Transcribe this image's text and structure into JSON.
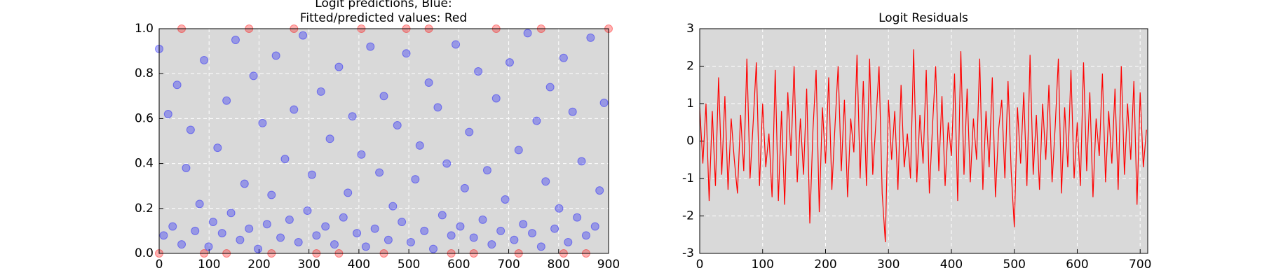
{
  "chart_data": [
    {
      "type": "scatter",
      "title": [
        "Logit predictions, Blue:",
        "Fitted/predicted values: Red"
      ],
      "xlim": [
        0,
        900
      ],
      "ylim": [
        0,
        1
      ],
      "xticks": [
        0,
        100,
        200,
        300,
        400,
        500,
        600,
        700,
        800,
        900
      ],
      "yticks": [
        {
          "value": 0,
          "label": "0.0"
        },
        0.2,
        0.4,
        0.6,
        0.8,
        {
          "value": 1,
          "label": "1.0"
        }
      ],
      "grid": true,
      "series": [
        {
          "color": "#0000ff",
          "x": [
            0,
            9,
            18,
            27,
            36,
            45,
            54,
            63,
            72,
            81,
            90,
            99,
            108,
            117,
            126,
            135,
            144,
            153,
            162,
            171,
            180,
            189,
            198,
            207,
            216,
            225,
            234,
            243,
            252,
            261,
            270,
            279,
            288,
            297,
            306,
            315,
            324,
            333,
            342,
            351,
            360,
            369,
            378,
            387,
            396,
            405,
            414,
            423,
            432,
            441,
            450,
            459,
            468,
            477,
            486,
            495,
            504,
            513,
            522,
            531,
            540,
            549,
            558,
            567,
            576,
            585,
            594,
            603,
            612,
            621,
            630,
            639,
            648,
            657,
            666,
            675,
            684,
            693,
            702,
            711,
            720,
            729,
            738,
            747,
            756,
            765,
            774,
            783,
            792,
            801,
            810,
            819,
            828,
            837,
            846,
            855,
            864,
            873,
            882,
            891
          ],
          "values": [
            0.91,
            0.08,
            0.62,
            0.12,
            0.75,
            0.04,
            0.38,
            0.55,
            0.1,
            0.22,
            0.86,
            0.03,
            0.14,
            0.47,
            0.09,
            0.68,
            0.18,
            0.95,
            0.06,
            0.31,
            0.11,
            0.79,
            0.02,
            0.58,
            0.13,
            0.26,
            0.88,
            0.07,
            0.42,
            0.15,
            0.64,
            0.05,
            0.97,
            0.19,
            0.35,
            0.08,
            0.72,
            0.12,
            0.51,
            0.04,
            0.83,
            0.16,
            0.27,
            0.61,
            0.09,
            0.44,
            0.03,
            0.92,
            0.11,
            0.36,
            0.7,
            0.06,
            0.21,
            0.57,
            0.14,
            0.89,
            0.05,
            0.33,
            0.48,
            0.1,
            0.76,
            0.02,
            0.65,
            0.17,
            0.4,
            0.08,
            0.93,
            0.12,
            0.29,
            0.54,
            0.07,
            0.81,
            0.15,
            0.37,
            0.04,
            0.69,
            0.1,
            0.24,
            0.85,
            0.06,
            0.46,
            0.13,
            0.98,
            0.09,
            0.59,
            0.03,
            0.32,
            0.74,
            0.11,
            0.2,
            0.87,
            0.05,
            0.63,
            0.16,
            0.41,
            0.08,
            0.96,
            0.12,
            0.28,
            0.67
          ]
        },
        {
          "color": "#ff0000",
          "x": [
            0,
            45,
            90,
            135,
            180,
            225,
            270,
            315,
            360,
            405,
            450,
            495,
            540,
            585,
            630,
            675,
            720,
            765,
            810,
            855,
            900
          ],
          "values": [
            0,
            1,
            0,
            0,
            1,
            0,
            1,
            0,
            0,
            1,
            0,
            1,
            1,
            0,
            0,
            1,
            0,
            1,
            0,
            0,
            1
          ]
        }
      ]
    },
    {
      "type": "line",
      "title": "Logit Residuals",
      "xlim": [
        0,
        712
      ],
      "ylim": [
        -3,
        3
      ],
      "xticks": [
        0,
        100,
        200,
        300,
        400,
        500,
        600,
        700
      ],
      "yticks": [
        -3,
        -2,
        -1,
        0,
        1,
        2,
        3
      ],
      "grid": true,
      "series": [
        {
          "color": "#ff0000",
          "x": [
            0,
            5,
            10,
            15,
            20,
            25,
            30,
            35,
            40,
            45,
            50,
            55,
            60,
            65,
            70,
            75,
            80,
            85,
            90,
            95,
            100,
            105,
            110,
            115,
            120,
            125,
            130,
            135,
            140,
            145,
            150,
            155,
            160,
            165,
            170,
            175,
            180,
            185,
            190,
            195,
            200,
            205,
            210,
            215,
            220,
            225,
            230,
            235,
            240,
            245,
            250,
            255,
            260,
            265,
            270,
            275,
            280,
            285,
            290,
            295,
            300,
            305,
            310,
            315,
            320,
            325,
            330,
            335,
            340,
            345,
            350,
            355,
            360,
            365,
            370,
            375,
            380,
            385,
            390,
            395,
            400,
            405,
            410,
            415,
            420,
            425,
            430,
            435,
            440,
            445,
            450,
            455,
            460,
            465,
            470,
            475,
            480,
            485,
            490,
            495,
            500,
            505,
            510,
            515,
            520,
            525,
            530,
            535,
            540,
            545,
            550,
            555,
            560,
            565,
            570,
            575,
            580,
            585,
            590,
            595,
            600,
            605,
            610,
            615,
            620,
            625,
            630,
            635,
            640,
            645,
            650,
            655,
            660,
            665,
            670,
            675,
            680,
            685,
            690,
            695,
            700,
            705,
            710
          ],
          "values": [
            0.9,
            -0.6,
            1.0,
            -1.6,
            0.8,
            -1.2,
            1.7,
            -0.9,
            1.2,
            -1.3,
            0.6,
            -0.5,
            -1.4,
            0.7,
            -0.8,
            2.2,
            -1.0,
            0.5,
            2.1,
            -1.2,
            1.0,
            -0.7,
            0.2,
            -1.5,
            1.9,
            -1.6,
            0.8,
            -1.7,
            1.3,
            -0.4,
            2.0,
            -1.1,
            0.6,
            -0.9,
            1.4,
            -2.2,
            0.3,
            1.9,
            -1.9,
            0.9,
            -0.6,
            1.7,
            -1.3,
            0.4,
            2.0,
            -0.8,
            1.1,
            -1.5,
            0.6,
            -0.3,
            2.3,
            -1.0,
            1.6,
            -1.2,
            2.2,
            -0.9,
            0.5,
            2.0,
            -1.4,
            -2.7,
            1.1,
            -0.5,
            0.8,
            -1.3,
            1.5,
            -0.7,
            0.2,
            -1.0,
            2.45,
            -1.1,
            0.7,
            -0.6,
            1.9,
            -1.4,
            0.4,
            2.0,
            -0.8,
            1.2,
            -1.2,
            0.5,
            -0.4,
            1.8,
            -1.6,
            2.4,
            -0.9,
            1.4,
            -1.1,
            0.6,
            -0.5,
            2.2,
            -1.3,
            0.8,
            -0.7,
            1.7,
            -1.5,
            0.3,
            1.1,
            -1.0,
            1.6,
            -0.8,
            -2.3,
            0.9,
            -0.6,
            1.3,
            -1.2,
            2.3,
            -0.9,
            0.7,
            -1.3,
            1.0,
            -0.5,
            1.5,
            -1.1,
            0.4,
            2.2,
            -1.4,
            0.9,
            -0.7,
            1.9,
            -1.0,
            0.5,
            -1.2,
            2.1,
            -0.8,
            1.3,
            -1.5,
            0.6,
            -0.4,
            1.8,
            -1.1,
            0.8,
            -0.6,
            1.4,
            -1.3,
            2.0,
            -0.9,
            1.0,
            -0.5,
            1.6,
            -1.7,
            1.3,
            -0.7,
            0.3
          ]
        }
      ]
    }
  ]
}
